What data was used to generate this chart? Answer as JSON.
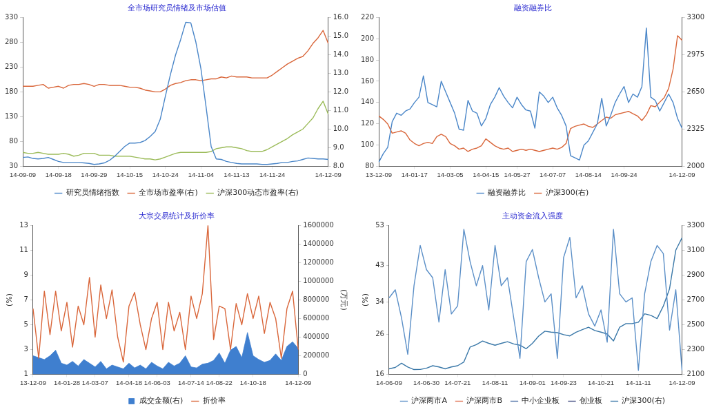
{
  "chart_data": [
    {
      "type": "line",
      "title": "全市场研究员情绪及市场估值",
      "legend": "bottom",
      "categories": [
        "14-09-09",
        null,
        null,
        null,
        null,
        null,
        null,
        "14-09-18",
        null,
        null,
        null,
        null,
        null,
        null,
        "14-09-29",
        null,
        null,
        null,
        null,
        null,
        null,
        "14-10-15",
        null,
        null,
        null,
        null,
        null,
        null,
        "14-10-24",
        null,
        null,
        null,
        null,
        null,
        null,
        "14-11-04",
        null,
        null,
        null,
        null,
        null,
        null,
        "14-11-13",
        null,
        null,
        null,
        null,
        null,
        null,
        "14-11-24",
        null,
        null,
        null,
        null,
        null,
        null,
        null,
        null,
        null,
        null,
        "14-12-09"
      ],
      "ylim": [
        30,
        330
      ],
      "yticks": [
        30,
        80,
        130,
        180,
        230,
        280,
        330
      ],
      "y2lim": [
        8,
        16
      ],
      "y2ticks": [
        {
          "value": 8,
          "label": "8.0"
        },
        {
          "value": 9,
          "label": "9.0"
        },
        {
          "value": 10,
          "label": "10.0"
        },
        {
          "value": 11,
          "label": "11.0"
        },
        {
          "value": 12,
          "label": "12.0"
        },
        {
          "value": 13,
          "label": "13.0"
        },
        {
          "value": 14,
          "label": "14.0"
        },
        {
          "value": 15,
          "label": "15.0"
        },
        {
          "value": 16,
          "label": "16.0"
        }
      ],
      "series": [
        {
          "name": "研究员情绪指数",
          "color": "#4a86c8",
          "values": [
            48,
            49,
            46,
            45,
            46,
            48,
            44,
            40,
            38,
            38,
            38,
            38,
            37,
            36,
            34,
            35,
            37,
            42,
            50,
            60,
            70,
            77,
            77,
            78,
            82,
            90,
            100,
            125,
            171,
            215,
            254,
            285,
            320,
            319,
            280,
            226,
            150,
            70,
            45,
            44,
            40,
            38,
            36,
            35,
            35,
            35,
            35,
            34,
            34,
            35,
            36,
            38,
            38,
            40,
            41,
            44,
            47,
            46,
            45,
            45,
            44
          ]
        },
        {
          "name": "全市场市盈率(右)",
          "color": "#d9663a",
          "axis": "y2",
          "values": [
            12.3,
            12.3,
            12.3,
            12.35,
            12.4,
            12.2,
            12.25,
            12.3,
            12.2,
            12.35,
            12.4,
            12.4,
            12.45,
            12.4,
            12.3,
            12.4,
            12.4,
            12.35,
            12.35,
            12.35,
            12.3,
            12.25,
            12.25,
            12.2,
            12.1,
            12.05,
            12.0,
            12.0,
            12.15,
            12.35,
            12.45,
            12.5,
            12.6,
            12.65,
            12.65,
            12.6,
            12.65,
            12.7,
            12.7,
            12.8,
            12.75,
            12.85,
            12.8,
            12.8,
            12.8,
            12.75,
            12.75,
            12.75,
            12.75,
            12.9,
            13.1,
            13.3,
            13.5,
            13.65,
            13.8,
            13.9,
            14.2,
            14.6,
            14.9,
            15.3,
            14.6
          ]
        },
        {
          "name": "沪深300动态市盈率(右)",
          "color": "#9bbb59",
          "axis": "y2",
          "values": [
            8.75,
            8.7,
            8.7,
            8.75,
            8.7,
            8.65,
            8.65,
            8.65,
            8.7,
            8.65,
            8.55,
            8.6,
            8.7,
            8.7,
            8.7,
            8.6,
            8.6,
            8.6,
            8.55,
            8.55,
            8.55,
            8.55,
            8.5,
            8.45,
            8.4,
            8.4,
            8.35,
            8.4,
            8.5,
            8.6,
            8.7,
            8.75,
            8.75,
            8.75,
            8.75,
            8.75,
            8.75,
            8.8,
            8.95,
            9.0,
            9.05,
            9.05,
            9.0,
            8.95,
            8.85,
            8.8,
            8.8,
            8.8,
            8.9,
            9.05,
            9.2,
            9.35,
            9.5,
            9.7,
            9.85,
            10.0,
            10.3,
            10.6,
            11.1,
            11.5,
            10.8
          ]
        }
      ]
    },
    {
      "type": "line",
      "title": "融资融券比",
      "legend": "bottom",
      "categories": [
        "13-12-09",
        null,
        null,
        null,
        null,
        null,
        null,
        null,
        "14-01-17",
        null,
        null,
        null,
        null,
        null,
        null,
        null,
        "14-03-05",
        null,
        null,
        null,
        null,
        null,
        null,
        null,
        "14-04-15",
        null,
        null,
        null,
        null,
        null,
        null,
        "14-05-27",
        null,
        null,
        null,
        null,
        null,
        null,
        null,
        "14-07-07",
        null,
        null,
        null,
        null,
        null,
        null,
        null,
        "14-08-14",
        null,
        null,
        null,
        null,
        null,
        null,
        null,
        "14-09-24",
        null,
        null,
        null,
        null,
        null,
        null,
        null,
        null,
        null,
        null,
        null,
        null,
        "14-12-09"
      ],
      "ylim": [
        80,
        220
      ],
      "yticks": [
        80,
        100,
        120,
        140,
        160,
        180,
        200,
        220
      ],
      "y2lim": [
        2000,
        3300
      ],
      "y2ticks": [
        2000,
        2325,
        2650,
        2975,
        3300
      ],
      "series": [
        {
          "name": "融资融券比",
          "color": "#4a86c8",
          "values": [
            84,
            92,
            98,
            122,
            130,
            128,
            132,
            134,
            140,
            145,
            165,
            140,
            138,
            136,
            160,
            150,
            140,
            130,
            115,
            114,
            142,
            132,
            130,
            118,
            125,
            138,
            145,
            154,
            146,
            140,
            135,
            145,
            138,
            133,
            132,
            116,
            150,
            146,
            140,
            145,
            135,
            128,
            118,
            90,
            88,
            86,
            100,
            104,
            112,
            120,
            144,
            118,
            128,
            140,
            148,
            155,
            140,
            148,
            145,
            155,
            210,
            145,
            142,
            132,
            140,
            148,
            140,
            125,
            116
          ]
        },
        {
          "name": "沪深300(右)",
          "color": "#d9663a",
          "axis": "y2",
          "values": [
            2440,
            2410,
            2370,
            2290,
            2300,
            2310,
            2290,
            2230,
            2200,
            2180,
            2200,
            2210,
            2200,
            2260,
            2280,
            2260,
            2200,
            2180,
            2150,
            2160,
            2130,
            2150,
            2160,
            2180,
            2240,
            2210,
            2180,
            2160,
            2150,
            2160,
            2130,
            2140,
            2150,
            2140,
            2150,
            2140,
            2130,
            2140,
            2150,
            2160,
            2150,
            2165,
            2200,
            2330,
            2350,
            2360,
            2370,
            2350,
            2340,
            2370,
            2400,
            2430,
            2420,
            2450,
            2460,
            2470,
            2480,
            2460,
            2440,
            2400,
            2450,
            2530,
            2520,
            2560,
            2600,
            2680,
            2850,
            3140,
            3100
          ]
        }
      ]
    },
    {
      "type": "line",
      "title": "大宗交易统计及折价率",
      "legend": "bottom",
      "ylabel": "(%)",
      "y2label": "(万元)",
      "categories": [
        "13-12-09",
        null,
        null,
        null,
        null,
        null,
        "14-01-28",
        null,
        null,
        null,
        null,
        "14-03-07",
        null,
        null,
        null,
        null,
        null,
        "14-04-18",
        null,
        null,
        null,
        null,
        "14-06-03",
        null,
        null,
        null,
        null,
        null,
        "14-07-14",
        null,
        null,
        null,
        null,
        "14-08-22",
        null,
        null,
        null,
        null,
        null,
        "14-10-18",
        null,
        null,
        null,
        null,
        null,
        null,
        null,
        "14-12-09"
      ],
      "ylim": [
        1,
        13
      ],
      "yticks": [
        1,
        3,
        5,
        7,
        9,
        11,
        13
      ],
      "y2lim": [
        0,
        1600000
      ],
      "y2ticks": [
        0,
        200000,
        400000,
        600000,
        800000,
        1000000,
        1200000,
        1400000,
        1600000
      ],
      "series": [
        {
          "name": "成交金额(右)",
          "type": "area",
          "color": "#3f7fcf",
          "axis": "y2",
          "values": [
            200000,
            180000,
            160000,
            200000,
            260000,
            120000,
            100000,
            140000,
            90000,
            160000,
            120000,
            80000,
            140000,
            60000,
            100000,
            80000,
            60000,
            120000,
            70000,
            100000,
            60000,
            130000,
            90000,
            60000,
            130000,
            90000,
            120000,
            200000,
            80000,
            70000,
            110000,
            120000,
            150000,
            230000,
            120000,
            260000,
            300000,
            180000,
            450000,
            200000,
            160000,
            130000,
            150000,
            220000,
            150000,
            300000,
            350000,
            280000
          ]
        },
        {
          "name": "折价率",
          "color": "#d9663a",
          "values": [
            6.3,
            2.3,
            7.7,
            4.2,
            7.7,
            4.5,
            6.8,
            3.2,
            6.5,
            5.0,
            8.8,
            4.0,
            8.2,
            5.5,
            7.8,
            4.0,
            2.0,
            6.5,
            7.6,
            5.0,
            3.0,
            5.5,
            6.8,
            3.0,
            6.8,
            4.5,
            6.0,
            3.0,
            7.3,
            5.5,
            7.5,
            13.0,
            3.8,
            6.5,
            6.3,
            3.0,
            6.7,
            5.0,
            7.5,
            5.5,
            7.3,
            4.3,
            6.8,
            5.5,
            2.3,
            6.3,
            7.7,
            3.0
          ]
        }
      ]
    },
    {
      "type": "line",
      "title": "主动资金流入强度",
      "legend": "bottom",
      "ylabel": "(%)",
      "categories": [
        "14-06-09",
        null,
        null,
        null,
        null,
        null,
        "14-06-30",
        null,
        null,
        null,
        null,
        "14-07-21",
        null,
        null,
        null,
        null,
        null,
        "14-08-11",
        null,
        null,
        null,
        null,
        null,
        "14-09-01",
        null,
        null,
        null,
        null,
        "14-09-23",
        null,
        null,
        null,
        null,
        null,
        "14-10-21",
        null,
        null,
        null,
        null,
        null,
        "14-11-11",
        null,
        null,
        null,
        null,
        null,
        null,
        "14-12-09"
      ],
      "ylim": [
        16,
        53
      ],
      "yticks": [
        16,
        26,
        34,
        43,
        53
      ],
      "y2lim": [
        2100,
        3300
      ],
      "y2ticks": [
        2100,
        2300,
        2500,
        2700,
        2900,
        3100,
        3300
      ],
      "series": [
        {
          "name": "沪深两市A",
          "color": "#5b8fc7",
          "values": [
            35,
            37,
            30,
            21,
            38,
            48,
            42,
            40,
            29,
            42,
            31,
            33,
            52,
            44,
            38,
            43,
            32,
            48,
            38,
            40,
            30,
            20,
            44,
            47,
            40,
            34,
            36,
            20,
            45,
            50,
            35,
            38,
            31,
            28,
            32,
            24,
            52,
            36,
            34,
            35,
            17,
            36,
            44,
            48,
            46,
            27,
            37,
            17
          ]
        },
        {
          "name": "沪深两市B",
          "color": "#e07050",
          "values": [
            null,
            null,
            null,
            null,
            null,
            null,
            null,
            null,
            null,
            null,
            null,
            null,
            null,
            null,
            null,
            null,
            null,
            null,
            null,
            null,
            null,
            null,
            null,
            null,
            null,
            null,
            null,
            null,
            null,
            null,
            null,
            null,
            null,
            null,
            null,
            null,
            null,
            null,
            null,
            null,
            null,
            null,
            null,
            null,
            null,
            null,
            null,
            null
          ]
        },
        {
          "name": "中小企业板",
          "color": "#4a6fa5",
          "values": [
            null,
            null,
            null,
            null,
            null,
            null,
            null,
            null,
            null,
            null,
            null,
            null,
            null,
            null,
            null,
            null,
            null,
            null,
            null,
            null,
            null,
            null,
            null,
            null,
            null,
            null,
            null,
            null,
            null,
            null,
            null,
            null,
            null,
            null,
            null,
            null,
            null,
            null,
            null,
            null,
            null,
            null,
            null,
            null,
            null,
            null,
            null,
            null
          ]
        },
        {
          "name": "创业板",
          "color": "#404a80",
          "values": [
            null,
            null,
            null,
            null,
            null,
            null,
            null,
            null,
            null,
            null,
            null,
            null,
            null,
            null,
            null,
            null,
            null,
            null,
            null,
            null,
            null,
            null,
            null,
            null,
            null,
            null,
            null,
            null,
            null,
            null,
            null,
            null,
            null,
            null,
            null,
            null,
            null,
            null,
            null,
            null,
            null,
            null,
            null,
            null,
            null,
            null,
            null,
            null
          ]
        },
        {
          "name": "沪深300(右)",
          "color": "#3a78a8",
          "axis": "y2",
          "values": [
            2145,
            2156,
            2190,
            2160,
            2139,
            2140,
            2150,
            2170,
            2160,
            2145,
            2160,
            2170,
            2200,
            2320,
            2340,
            2369,
            2350,
            2335,
            2350,
            2363,
            2345,
            2335,
            2307,
            2350,
            2408,
            2448,
            2440,
            2436,
            2420,
            2410,
            2440,
            2460,
            2480,
            2453,
            2440,
            2425,
            2369,
            2480,
            2509,
            2509,
            2520,
            2588,
            2575,
            2549,
            2650,
            2790,
            3100,
            3200
          ]
        }
      ]
    }
  ]
}
